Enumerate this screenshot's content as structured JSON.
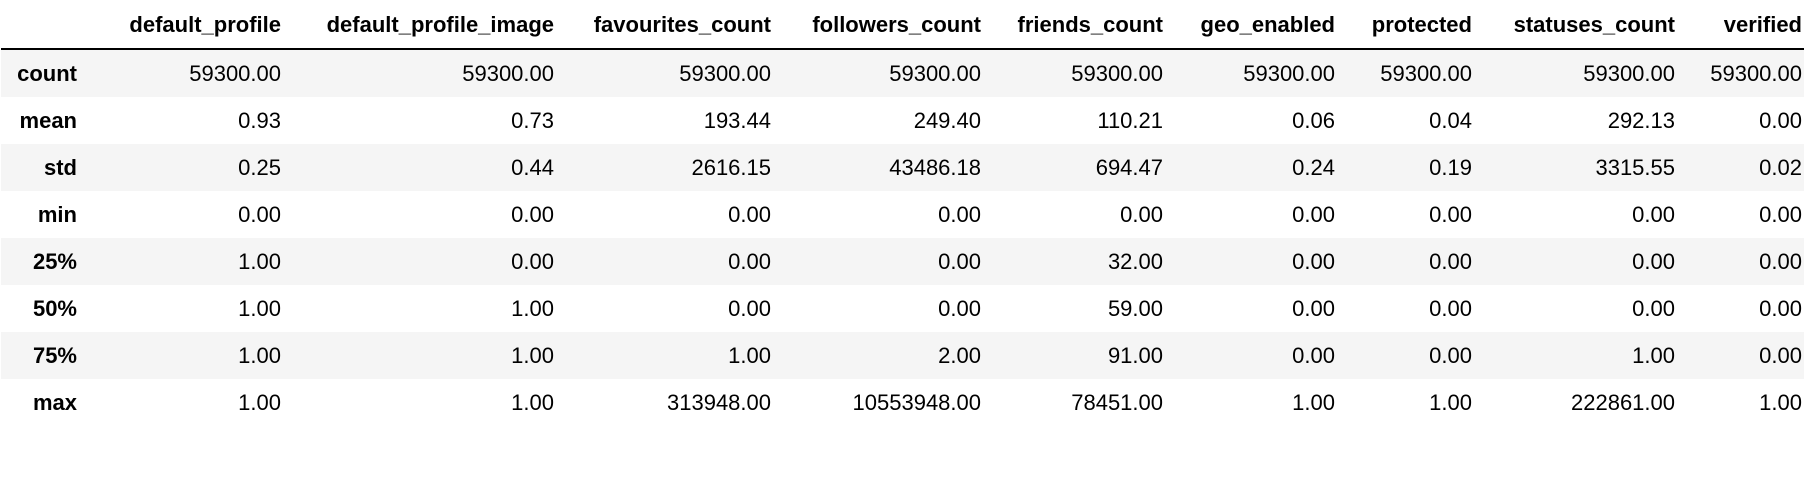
{
  "table": {
    "columns": [
      "default_profile",
      "default_profile_image",
      "favourites_count",
      "followers_count",
      "friends_count",
      "geo_enabled",
      "protected",
      "statuses_count",
      "verified"
    ],
    "rows": [
      {
        "label": "count",
        "values": [
          "59300.00",
          "59300.00",
          "59300.00",
          "59300.00",
          "59300.00",
          "59300.00",
          "59300.00",
          "59300.00",
          "59300.00"
        ]
      },
      {
        "label": "mean",
        "values": [
          "0.93",
          "0.73",
          "193.44",
          "249.40",
          "110.21",
          "0.06",
          "0.04",
          "292.13",
          "0.00"
        ]
      },
      {
        "label": "std",
        "values": [
          "0.25",
          "0.44",
          "2616.15",
          "43486.18",
          "694.47",
          "0.24",
          "0.19",
          "3315.55",
          "0.02"
        ]
      },
      {
        "label": "min",
        "values": [
          "0.00",
          "0.00",
          "0.00",
          "0.00",
          "0.00",
          "0.00",
          "0.00",
          "0.00",
          "0.00"
        ]
      },
      {
        "label": "25%",
        "values": [
          "1.00",
          "0.00",
          "0.00",
          "0.00",
          "32.00",
          "0.00",
          "0.00",
          "0.00",
          "0.00"
        ]
      },
      {
        "label": "50%",
        "values": [
          "1.00",
          "1.00",
          "0.00",
          "0.00",
          "59.00",
          "0.00",
          "0.00",
          "0.00",
          "0.00"
        ]
      },
      {
        "label": "75%",
        "values": [
          "1.00",
          "1.00",
          "1.00",
          "2.00",
          "91.00",
          "0.00",
          "0.00",
          "1.00",
          "0.00"
        ]
      },
      {
        "label": "max",
        "values": [
          "1.00",
          "1.00",
          "313948.00",
          "10553948.00",
          "78451.00",
          "1.00",
          "1.00",
          "222861.00",
          "1.00"
        ]
      }
    ]
  }
}
